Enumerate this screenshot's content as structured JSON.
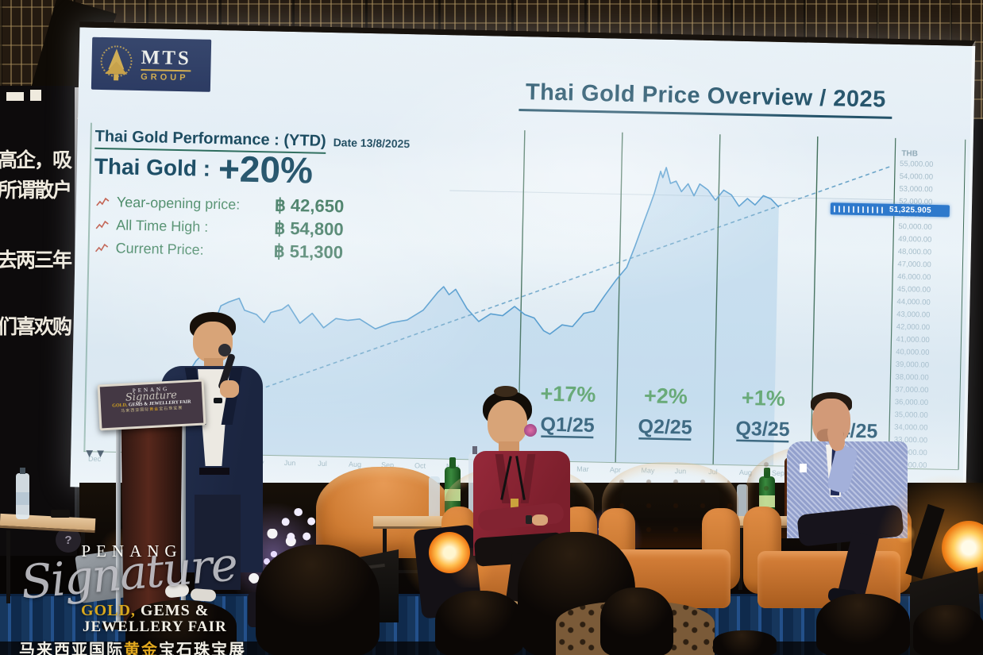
{
  "mts": {
    "name": "MTS",
    "sub": "GROUP"
  },
  "slide": {
    "title": "Thai Gold Price Overview / 2025",
    "perf_title": "Thai Gold Performance : (YTD)",
    "perf_date": "Date 13/8/2025",
    "headline": "Thai Gold :",
    "headline_pct": "+20%",
    "stats": [
      {
        "label": "Year-opening price:",
        "value": "฿ 42,650"
      },
      {
        "label": "All Time High :",
        "value": "฿ 54,800"
      },
      {
        "label": "Current Price:",
        "value": "฿ 51,300"
      }
    ]
  },
  "chart_data": {
    "type": "area",
    "title": "Thai Gold Price Overview / 2025",
    "currency": "THB",
    "ylabel": "THB per baht-weight gold",
    "y_axis": {
      "max": 55000,
      "min": 31000,
      "step": 1000,
      "labels": [
        "55,000.00",
        "54,000.00",
        "53,000.00",
        "52,000.00",
        "51,000.00",
        "50,000.00",
        "49,000.00",
        "48,000.00",
        "47,000.00",
        "46,000.00",
        "45,000.00",
        "44,000.00",
        "43,000.00",
        "42,000.00",
        "41,000.00",
        "40,000.00",
        "39,000.00",
        "38,000.00",
        "37,000.00",
        "36,000.00",
        "35,000.00",
        "34,000.00",
        "33,000.00",
        "32,000.00",
        "31,000.00"
      ]
    },
    "x_months": [
      "Dec",
      "Jan",
      "Feb",
      "Mar",
      "Apr",
      "May",
      "Jun",
      "Jul",
      "Aug",
      "Sep",
      "Oct",
      "Nov",
      "Dec",
      "Jan",
      "Feb",
      "Mar",
      "Apr",
      "May",
      "Jun",
      "Jul",
      "Aug",
      "Sep",
      "Oct",
      "Nov",
      "Dec"
    ],
    "quarter_dividers_t": [
      13,
      16,
      19,
      22
    ],
    "quarters": [
      {
        "pct": "+17%",
        "label": "Q1/25",
        "t": 14.5
      },
      {
        "pct": "+2%",
        "label": "Q2/25",
        "t": 17.5
      },
      {
        "pct": "+1%",
        "label": "Q3/25",
        "t": 20.5
      },
      {
        "pct": "",
        "label": "Q4/25",
        "t": 23.2
      }
    ],
    "series": [
      {
        "name": "Thai Gold spot (THB)",
        "points": [
          [
            2.2,
            34000
          ],
          [
            2.44,
            34600
          ],
          [
            2.68,
            36500
          ],
          [
            3.05,
            38100
          ],
          [
            3.41,
            39050
          ],
          [
            3.61,
            41270
          ],
          [
            3.78,
            42530
          ],
          [
            4.02,
            42850
          ],
          [
            4.34,
            43160
          ],
          [
            4.51,
            42215
          ],
          [
            4.88,
            41900
          ],
          [
            5.12,
            41270
          ],
          [
            5.32,
            42090
          ],
          [
            5.66,
            42340
          ],
          [
            5.85,
            42720
          ],
          [
            6.22,
            41270
          ],
          [
            6.59,
            42090
          ],
          [
            6.95,
            40950
          ],
          [
            7.32,
            41710
          ],
          [
            7.68,
            41580
          ],
          [
            8.05,
            41710
          ],
          [
            8.54,
            40950
          ],
          [
            9.02,
            41460
          ],
          [
            9.51,
            41710
          ],
          [
            10,
            42530
          ],
          [
            10.44,
            43990
          ],
          [
            10.61,
            44430
          ],
          [
            10.78,
            43800
          ],
          [
            10.98,
            44240
          ],
          [
            11.34,
            42720
          ],
          [
            11.71,
            41710
          ],
          [
            12.07,
            42340
          ],
          [
            12.44,
            42215
          ],
          [
            12.8,
            42970
          ],
          [
            13.12,
            42340
          ],
          [
            13.41,
            42090
          ],
          [
            13.71,
            41080
          ],
          [
            13.9,
            40820
          ],
          [
            14.27,
            41580
          ],
          [
            14.59,
            41460
          ],
          [
            14.93,
            42530
          ],
          [
            15.24,
            42720
          ],
          [
            15.56,
            43990
          ],
          [
            15.9,
            45250
          ],
          [
            16.22,
            46270
          ],
          [
            16.46,
            47980
          ],
          [
            16.71,
            49870
          ],
          [
            16.88,
            51140
          ],
          [
            17.02,
            52215
          ],
          [
            17.2,
            53990
          ],
          [
            17.27,
            53480
          ],
          [
            17.37,
            54300
          ],
          [
            17.51,
            53040
          ],
          [
            17.68,
            53230
          ],
          [
            17.85,
            52400
          ],
          [
            18.05,
            53040
          ],
          [
            18.24,
            52090
          ],
          [
            18.41,
            53040
          ],
          [
            18.66,
            52590
          ],
          [
            18.9,
            51770
          ],
          [
            19.15,
            52590
          ],
          [
            19.39,
            52215
          ],
          [
            19.63,
            51330
          ],
          [
            19.88,
            51960
          ],
          [
            20.12,
            51460
          ],
          [
            20.37,
            52215
          ],
          [
            20.61,
            51960
          ],
          [
            20.85,
            51325
          ]
        ]
      }
    ],
    "trend": {
      "from": [
        0.9,
        31900
      ],
      "to": [
        24.3,
        54800
      ]
    },
    "ath_gridline": 52100,
    "last_price_label": "51,325.905",
    "colors": {
      "line": "#4a96cc",
      "fill": "#c3dcef",
      "trend": "#6aa4c8",
      "divider": "#3c6a54",
      "pct": "#55a05e",
      "qlabel": "#1f506b",
      "flag": "#2e79cc"
    }
  },
  "left_screen": {
    "lines": [
      "高企，吸",
      "所谓散户",
      "去两三年",
      "们喜欢购"
    ],
    "icon_zero": "(0)",
    "icon_pro": "PRO",
    "question": "?"
  },
  "watermark": {
    "penang": "PENANG",
    "signature": "Signature",
    "gold": "GOLD,",
    "gems": " GEMS &",
    "fair": "JEWELLERY FAIR",
    "cn_white1": "马来西亚国际",
    "cn_gold": "黄金",
    "cn_white2": "宝石珠宝展"
  }
}
